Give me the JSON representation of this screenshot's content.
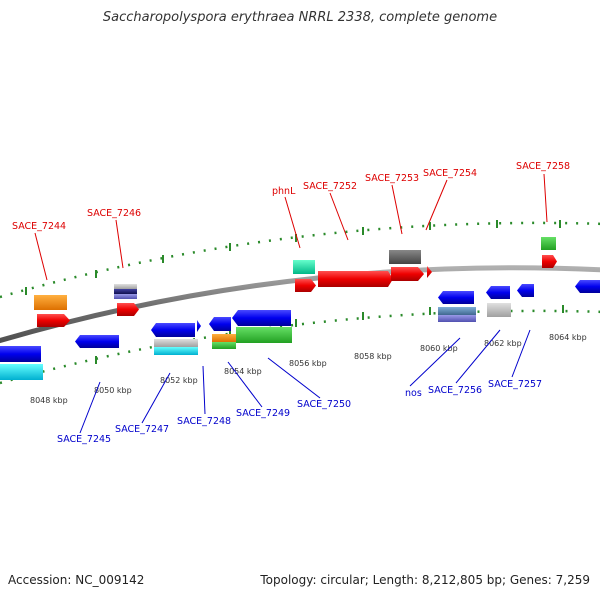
{
  "title": "Saccharopolyspora erythraea NRRL 2338, complete genome",
  "footer": {
    "accession": "Accession: NC_009142",
    "topology": "Topology: circular; Length: 8,212,805 bp; Genes: 7,259"
  },
  "colors": {
    "top_label": "#dd0000",
    "bottom_label": "#0000cc",
    "ruler_tick": "#2a8a2a",
    "backbone": "#808080"
  },
  "scale_labels": [
    "8048 kbp",
    "8050 kbp",
    "8052 kbp",
    "8054 kbp",
    "8056 kbp",
    "8058 kbp",
    "8060 kbp",
    "8062 kbp",
    "8064 kbp"
  ],
  "top_genes": [
    "SACE_7244",
    "SACE_7246",
    "phnL",
    "SACE_7252",
    "SACE_7253",
    "SACE_7254",
    "SACE_7258"
  ],
  "bottom_genes": [
    "SACE_7245",
    "SACE_7247",
    "SACE_7248",
    "SACE_7249",
    "SACE_7250",
    "nos",
    "SACE_7256",
    "SACE_7257"
  ]
}
